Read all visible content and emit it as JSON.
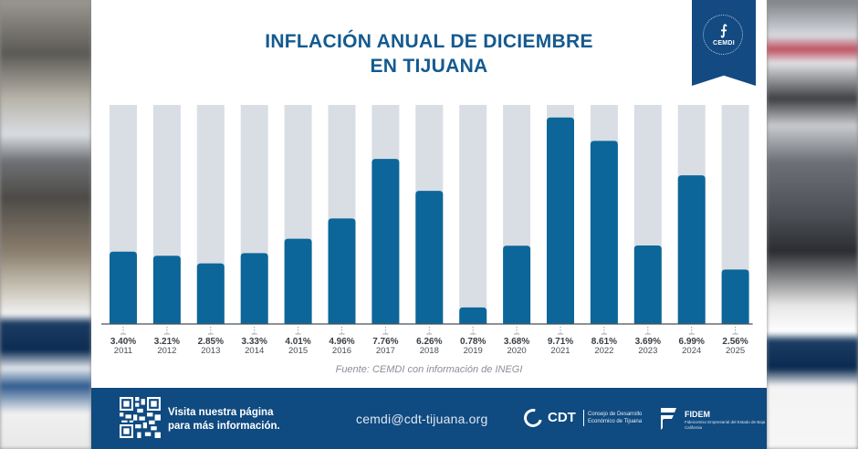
{
  "title_line1": "INFLACIÓN ANUAL DE DICIEMBRE",
  "title_line2": "EN TIJUANA",
  "badge": {
    "label": "CEMDI",
    "icon": "cemdi-logo-icon"
  },
  "source": "Fuente: CEMDI con información de INEGI",
  "footer": {
    "visit_line1": "Visita nuestra página",
    "visit_line2": "para más información.",
    "email": "cemdi@cdt-tijuana.org",
    "cdt_name": "CDT",
    "cdt_desc": "Consejo de Desarrollo Económico de Tijuana",
    "fidem_name": "FIDEM",
    "fidem_desc": "Fideicomiso Empresarial del Estado de Baja California"
  },
  "colors": {
    "bar": "#0c6699",
    "track": "#d9dee5",
    "title": "#145a8f",
    "footer": "#0f4a80"
  },
  "chart_data": {
    "type": "bar",
    "title": "INFLACIÓN ANUAL DE DICIEMBRE EN TIJUANA",
    "xlabel": "",
    "ylabel": "",
    "ylim": [
      0,
      10.3
    ],
    "grid": false,
    "categories": [
      "2011",
      "2012",
      "2013",
      "2014",
      "2015",
      "2016",
      "2017",
      "2018",
      "2019",
      "2020",
      "2021",
      "2022",
      "2023",
      "2024",
      "2025"
    ],
    "values": [
      3.4,
      3.21,
      2.85,
      3.33,
      4.01,
      4.96,
      7.76,
      6.26,
      0.78,
      3.68,
      9.71,
      8.61,
      3.69,
      6.99,
      2.56
    ],
    "value_labels": [
      "3.40%",
      "3.21%",
      "2.85%",
      "3.33%",
      "4.01%",
      "4.96%",
      "7.76%",
      "6.26%",
      "0.78%",
      "3.68%",
      "9.71%",
      "8.61%",
      "3.69%",
      "6.99%",
      "2.56%"
    ],
    "annotations": [
      "Fuente: CEMDI con información de INEGI"
    ]
  }
}
